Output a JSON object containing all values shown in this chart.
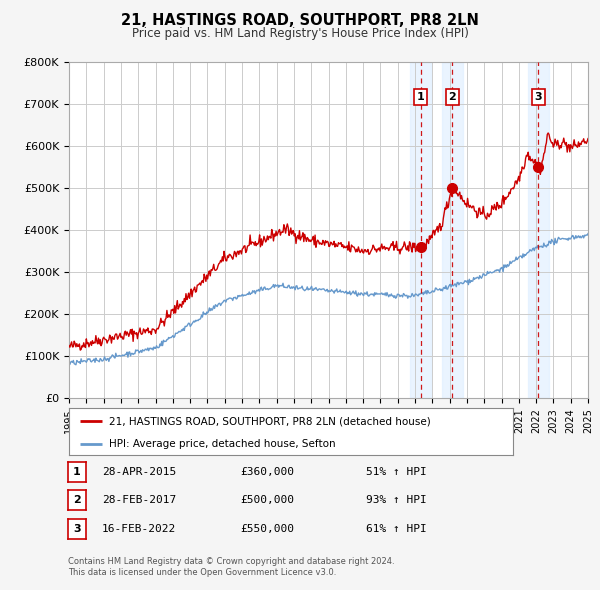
{
  "title": "21, HASTINGS ROAD, SOUTHPORT, PR8 2LN",
  "subtitle": "Price paid vs. HM Land Registry's House Price Index (HPI)",
  "background_color": "#f5f5f5",
  "plot_bg_color": "#ffffff",
  "red_line_color": "#cc0000",
  "blue_line_color": "#6699cc",
  "grid_color": "#cccccc",
  "sale_marker_color": "#cc0000",
  "dashed_line_color": "#cc0000",
  "shade_color": "#ddeeff",
  "ylim": [
    0,
    800000
  ],
  "yticks": [
    0,
    100000,
    200000,
    300000,
    400000,
    500000,
    600000,
    700000,
    800000
  ],
  "ytick_labels": [
    "£0",
    "£100K",
    "£200K",
    "£300K",
    "£400K",
    "£500K",
    "£600K",
    "£700K",
    "£800K"
  ],
  "xmin": 1995,
  "xmax": 2025,
  "sale_events": [
    {
      "year": 2015.32,
      "price": 360000,
      "label": "1",
      "date": "28-APR-2015",
      "pct": "51%",
      "dir": "↑"
    },
    {
      "year": 2017.16,
      "price": 500000,
      "label": "2",
      "date": "28-FEB-2017",
      "pct": "93%",
      "dir": "↑"
    },
    {
      "year": 2022.12,
      "price": 550000,
      "label": "3",
      "date": "16-FEB-2022",
      "pct": "61%",
      "dir": "↑"
    }
  ],
  "legend_line1": "21, HASTINGS ROAD, SOUTHPORT, PR8 2LN (detached house)",
  "legend_line2": "HPI: Average price, detached house, Sefton",
  "footer1": "Contains HM Land Registry data © Crown copyright and database right 2024.",
  "footer2": "This data is licensed under the Open Government Licence v3.0."
}
